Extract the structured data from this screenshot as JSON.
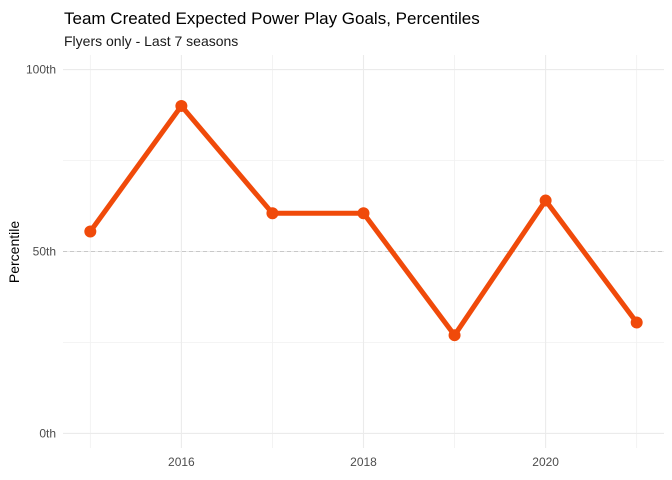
{
  "chart_data": {
    "type": "line",
    "title": "Team Created Expected Power Play Goals, Percentiles",
    "subtitle": "Flyers only - Last 7 seasons",
    "xlabel": "",
    "ylabel": "Percentile",
    "x": [
      2015,
      2016,
      2017,
      2018,
      2019,
      2020,
      2021
    ],
    "xlim": [
      2014.7,
      2021.3
    ],
    "x_ticks": [
      2016,
      2018,
      2020
    ],
    "x_tick_labels": [
      "2016",
      "2018",
      "2020"
    ],
    "ylim": [
      -4,
      104
    ],
    "y_ticks": [
      0,
      50,
      100
    ],
    "y_tick_labels": [
      "0th",
      "50th",
      "100th"
    ],
    "series": [
      {
        "values": [
          55.5,
          90,
          60.5,
          60.5,
          27,
          64,
          30.5
        ],
        "color": "#f04a0a"
      }
    ],
    "reference_line": {
      "y": 50,
      "style": "dashed",
      "color": "#c8c8c8"
    },
    "grid": true,
    "legend": "none"
  }
}
